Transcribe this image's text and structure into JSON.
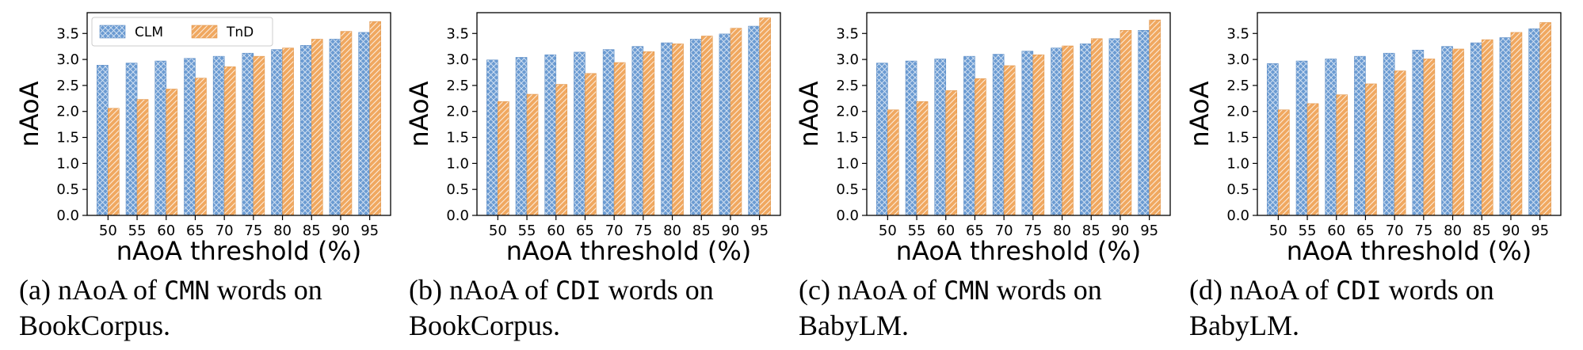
{
  "chart_data": [
    {
      "type": "bar",
      "ylabel": "nAoA",
      "xlabel": "nAoA threshold (%)",
      "categories": [
        "50",
        "55",
        "60",
        "65",
        "70",
        "75",
        "80",
        "85",
        "90",
        "95"
      ],
      "ylim": [
        0,
        3.9
      ],
      "yticks": [
        "0.0",
        "0.5",
        "1.0",
        "1.5",
        "2.0",
        "2.5",
        "3.0",
        "3.5"
      ],
      "legend": "top-left",
      "series": [
        {
          "name": "CLM",
          "color": "#6b9bd2",
          "values": [
            2.89,
            2.93,
            2.97,
            3.02,
            3.06,
            3.12,
            3.19,
            3.27,
            3.39,
            3.52
          ]
        },
        {
          "name": "TnD",
          "color": "#f0a860",
          "values": [
            2.06,
            2.23,
            2.43,
            2.64,
            2.86,
            3.06,
            3.22,
            3.39,
            3.54,
            3.73
          ]
        }
      ],
      "caption": {
        "prefix": "(a) nAoA of ",
        "word": "CMN",
        "suffix": " words on",
        "line2": "BookCorpus."
      }
    },
    {
      "type": "bar",
      "ylabel": "nAoA",
      "xlabel": "nAoA threshold (%)",
      "categories": [
        "50",
        "55",
        "60",
        "65",
        "70",
        "75",
        "80",
        "85",
        "90",
        "95"
      ],
      "ylim": [
        0,
        3.9
      ],
      "yticks": [
        "0.0",
        "0.5",
        "1.0",
        "1.5",
        "2.0",
        "2.5",
        "3.0",
        "3.5"
      ],
      "series": [
        {
          "name": "CLM",
          "color": "#6b9bd2",
          "values": [
            2.99,
            3.04,
            3.09,
            3.14,
            3.19,
            3.25,
            3.32,
            3.39,
            3.49,
            3.64
          ]
        },
        {
          "name": "TnD",
          "color": "#f0a860",
          "values": [
            2.19,
            2.33,
            2.52,
            2.73,
            2.94,
            3.15,
            3.3,
            3.45,
            3.6,
            3.8
          ]
        }
      ],
      "caption": {
        "prefix": "(b) nAoA of ",
        "word": "CDI",
        "suffix": " words on",
        "line2": "BookCorpus."
      }
    },
    {
      "type": "bar",
      "ylabel": "nAoA",
      "xlabel": "nAoA threshold (%)",
      "categories": [
        "50",
        "55",
        "60",
        "65",
        "70",
        "75",
        "80",
        "85",
        "90",
        "95"
      ],
      "ylim": [
        0,
        3.9
      ],
      "yticks": [
        "0.0",
        "0.5",
        "1.0",
        "1.5",
        "2.0",
        "2.5",
        "3.0",
        "3.5"
      ],
      "series": [
        {
          "name": "CLM",
          "color": "#6b9bd2",
          "values": [
            2.93,
            2.97,
            3.01,
            3.06,
            3.1,
            3.16,
            3.22,
            3.3,
            3.4,
            3.56
          ]
        },
        {
          "name": "TnD",
          "color": "#f0a860",
          "values": [
            2.03,
            2.19,
            2.4,
            2.63,
            2.88,
            3.09,
            3.26,
            3.4,
            3.56,
            3.76
          ]
        }
      ],
      "caption": {
        "prefix": "(c) nAoA of ",
        "word": "CMN",
        "suffix": " words on",
        "line2": "BabyLM."
      }
    },
    {
      "type": "bar",
      "ylabel": "nAoA",
      "xlabel": "nAoA threshold (%)",
      "categories": [
        "50",
        "55",
        "60",
        "65",
        "70",
        "75",
        "80",
        "85",
        "90",
        "95"
      ],
      "ylim": [
        0,
        3.9
      ],
      "yticks": [
        "0.0",
        "0.5",
        "1.0",
        "1.5",
        "2.0",
        "2.5",
        "3.0",
        "3.5"
      ],
      "series": [
        {
          "name": "CLM",
          "color": "#6b9bd2",
          "values": [
            2.92,
            2.97,
            3.01,
            3.06,
            3.12,
            3.18,
            3.25,
            3.32,
            3.42,
            3.59
          ]
        },
        {
          "name": "TnD",
          "color": "#f0a860",
          "values": [
            2.03,
            2.15,
            2.32,
            2.53,
            2.78,
            3.01,
            3.2,
            3.38,
            3.52,
            3.71
          ]
        }
      ],
      "caption": {
        "prefix": "(d) nAoA of ",
        "word": "CDI",
        "suffix": " words on",
        "line2": "BabyLM."
      }
    }
  ]
}
